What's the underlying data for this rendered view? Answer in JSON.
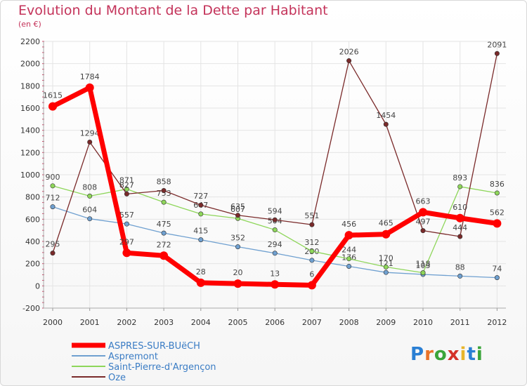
{
  "header": {
    "title": "Evolution du Montant de la Dette par Habitant",
    "subtitle": "(en €)"
  },
  "logo": {
    "letters": [
      "P",
      "r",
      "o",
      "x",
      "i",
      "t",
      "i"
    ]
  },
  "chart_data": {
    "type": "line",
    "title": "Evolution du Montant de la Dette par Habitant",
    "subtitle": "(en €)",
    "x": [
      "2000",
      "2001",
      "2002",
      "2003",
      "2004",
      "2005",
      "2006",
      "2007",
      "2008",
      "2009",
      "2010",
      "2011",
      "2012"
    ],
    "ylim": [
      -200,
      2200
    ],
    "yticks": [
      -200,
      0,
      200,
      400,
      600,
      800,
      1000,
      1200,
      1400,
      1600,
      1800,
      2000,
      2200
    ],
    "grid": true,
    "legend_position": "bottom-left",
    "series": [
      {
        "name": "ASPRES-SUR-BUëCH",
        "color": "#ff0000",
        "thick": true,
        "values": [
          1615,
          1784,
          297,
          272,
          28,
          20,
          13,
          6,
          456,
          465,
          663,
          610,
          562
        ],
        "labels": [
          "1615",
          "1784",
          "297",
          "272",
          "28",
          "20",
          "13",
          "6",
          "456",
          "465",
          "663",
          "610",
          "562"
        ]
      },
      {
        "name": "Aspremont",
        "color": "#6fa0d0",
        "thick": false,
        "values": [
          712,
          604,
          557,
          475,
          415,
          352,
          294,
          230,
          176,
          121,
          103,
          88,
          74
        ],
        "labels": [
          "712",
          "604",
          "557",
          "475",
          "415",
          "352",
          "294",
          "230",
          "176",
          "121",
          "103",
          "88",
          "74"
        ]
      },
      {
        "name": "Saint-Pierre-d'Argençon",
        "color": "#8ed65a",
        "thick": false,
        "values": [
          900,
          808,
          871,
          753,
          647,
          607,
          504,
          312,
          244,
          170,
          118,
          893,
          836
        ],
        "labels": [
          "900",
          "808",
          "871",
          "753",
          "647",
          "607",
          "504",
          "312",
          "244",
          "170",
          "118",
          "893",
          "836"
        ]
      },
      {
        "name": "Oze",
        "color": "#7a2a2a",
        "thick": false,
        "values": [
          295,
          1294,
          827,
          858,
          727,
          635,
          594,
          551,
          2026,
          1454,
          497,
          444,
          2091
        ],
        "labels": [
          "295",
          "1294",
          "827",
          "858",
          "727",
          "635",
          "594",
          "551",
          "2026",
          "1454",
          "497",
          "444",
          "2091"
        ]
      }
    ]
  }
}
